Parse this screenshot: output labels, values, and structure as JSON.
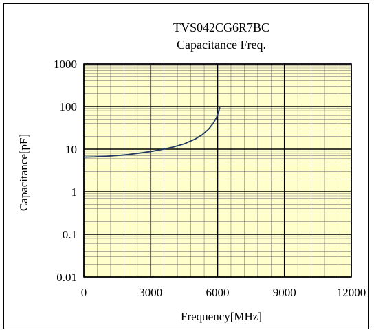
{
  "chart_data": {
    "type": "line",
    "title": "TVS042CG6R7BC",
    "subtitle": "Capacitance Freq.",
    "xlabel": "Frequency[MHz]",
    "ylabel": "Capacitance[pF]",
    "xlim": [
      0,
      12000
    ],
    "ylim": [
      0.01,
      1000
    ],
    "yscale": "log",
    "x_ticks": [
      0,
      3000,
      6000,
      9000,
      12000
    ],
    "x_tick_labels": [
      "0",
      "3000",
      "6000",
      "9000",
      "12000"
    ],
    "y_ticks": [
      0.01,
      0.1,
      1,
      10,
      100,
      1000
    ],
    "y_tick_labels": [
      "0.01",
      "0.1",
      "1",
      "10",
      "100",
      "1000"
    ],
    "grid": true,
    "plot_background": "#ffffcc",
    "line_color": "#1f3864",
    "series": [
      {
        "x": [
          0,
          500,
          1000,
          1500,
          2000,
          2500,
          3000,
          3500,
          4000,
          4500,
          5000,
          5300,
          5600,
          5800,
          5950,
          6050,
          6100
        ],
        "y": [
          6.5,
          6.6,
          6.8,
          7.1,
          7.5,
          8.1,
          8.8,
          9.8,
          11.2,
          13.3,
          17.3,
          21.5,
          29.5,
          40,
          55,
          75,
          97
        ]
      }
    ]
  }
}
